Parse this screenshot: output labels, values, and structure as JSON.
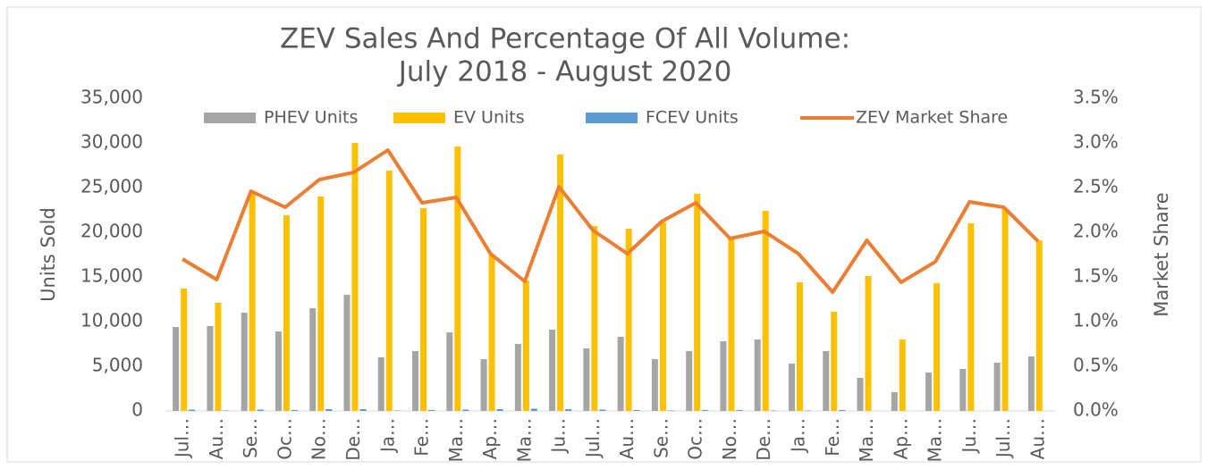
{
  "chart_data": {
    "type": "bar_line",
    "title": [
      "ZEV Sales And Percentage Of All Volume:",
      "July 2018 - August 2020"
    ],
    "y_label": "Units Sold",
    "y2_label": "Market Share",
    "categories": [
      "Jul…",
      "Au…",
      "Se…",
      "Oc…",
      "No…",
      "De…",
      "Ja…",
      "Fe…",
      "Ma…",
      "Ap…",
      "Ma…",
      "Ju…",
      "Jul…",
      "Au…",
      "Se…",
      "Oc…",
      "No…",
      "De…",
      "Ja…",
      "Fe…",
      "Ma…",
      "Ap…",
      "Ma…",
      "Ju…",
      "Jul…",
      "Au…"
    ],
    "series": [
      {
        "name": "PHEV Units",
        "color": "#a5a5a5",
        "kind": "bar",
        "values": [
          9400,
          9500,
          11000,
          8900,
          11500,
          13000,
          6000,
          6700,
          8800,
          5800,
          7500,
          9100,
          7000,
          8300,
          5800,
          6700,
          7800,
          8000,
          5300,
          6700,
          3700,
          2100,
          4300,
          4700,
          5400,
          6100
        ]
      },
      {
        "name": "EV Units",
        "color": "#ffc000",
        "kind": "bar",
        "values": [
          13700,
          12100,
          24500,
          21900,
          24000,
          30000,
          26900,
          22700,
          29600,
          17500,
          14600,
          28700,
          20700,
          20400,
          21100,
          24300,
          19300,
          22400,
          14400,
          11100,
          15100,
          8000,
          14300,
          21000,
          22600,
          19100
        ]
      },
      {
        "name": "FCEV Units",
        "color": "#5b9bd5",
        "kind": "bar",
        "values": [
          150,
          50,
          150,
          100,
          200,
          200,
          50,
          100,
          150,
          200,
          250,
          200,
          150,
          100,
          50,
          100,
          100,
          50,
          50,
          100,
          0,
          0,
          0,
          0,
          0,
          0
        ]
      },
      {
        "name": "ZEV Market Share",
        "color": "#ed7d31",
        "kind": "line",
        "axis": "y2",
        "values": [
          1.7,
          1.47,
          2.46,
          2.28,
          2.59,
          2.67,
          2.92,
          2.33,
          2.39,
          1.76,
          1.45,
          2.51,
          2.02,
          1.76,
          2.12,
          2.33,
          1.93,
          2.01,
          1.76,
          1.33,
          1.91,
          1.44,
          1.67,
          2.34,
          2.28,
          1.9
        ]
      }
    ],
    "ylim": [
      0,
      35000
    ],
    "yticks": [
      0,
      {
        "value": 5000,
        "label": "5,000"
      },
      {
        "value": 10000,
        "label": "10,000"
      },
      {
        "value": 15000,
        "label": "15,000"
      },
      {
        "value": 20000,
        "label": "20,000"
      },
      {
        "value": 25000,
        "label": "25,000"
      },
      {
        "value": 30000,
        "label": "30,000"
      },
      {
        "value": 35000,
        "label": "35,000"
      }
    ],
    "y2lim": [
      0,
      3.5
    ],
    "y2ticks": [
      {
        "value": 0,
        "label": "0.0%"
      },
      {
        "value": 0.5,
        "label": "0.5%"
      },
      {
        "value": 1,
        "label": "1.0%"
      },
      {
        "value": 1.5,
        "label": "1.5%"
      },
      {
        "value": 2,
        "label": "2.0%"
      },
      {
        "value": 2.5,
        "label": "2.5%"
      },
      {
        "value": 3,
        "label": "3.0%"
      },
      {
        "value": 3.5,
        "label": "3.5%"
      }
    ],
    "legend": "top"
  }
}
